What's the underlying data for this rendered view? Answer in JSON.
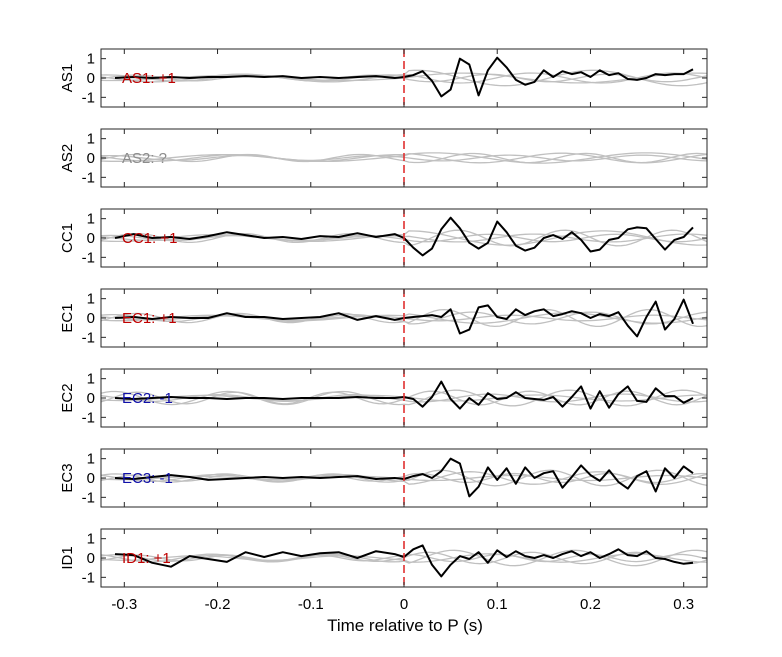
{
  "chart_data": {
    "type": "line",
    "xlabel": "Time relative to P (s)",
    "xlim": [
      -0.325,
      0.325
    ],
    "xticks": [
      -0.3,
      -0.2,
      -0.1,
      0,
      0.1,
      0.2,
      0.3
    ],
    "xtick_labels": [
      "-0.3",
      "-0.2",
      "-0.1",
      "0",
      "0.1",
      "0.2",
      "0.3"
    ],
    "ylim": [
      -1.5,
      1.5
    ],
    "yticks": [
      -1,
      0,
      1
    ],
    "ytick_labels": [
      "-1",
      "0",
      "1"
    ],
    "pick_marker": {
      "x": 0,
      "color": "#e03030"
    },
    "panels": [
      {
        "ylabel": "AS1",
        "annotation": "AS1: +1",
        "annotation_color": "#c00000",
        "x": [
          -0.31,
          -0.29,
          -0.27,
          -0.25,
          -0.23,
          -0.21,
          -0.19,
          -0.17,
          -0.15,
          -0.13,
          -0.11,
          -0.09,
          -0.07,
          -0.05,
          -0.03,
          -0.01,
          0.0,
          0.01,
          0.02,
          0.03,
          0.04,
          0.05,
          0.06,
          0.07,
          0.08,
          0.09,
          0.1,
          0.11,
          0.12,
          0.13,
          0.14,
          0.15,
          0.16,
          0.17,
          0.18,
          0.19,
          0.2,
          0.21,
          0.22,
          0.23,
          0.24,
          0.25,
          0.26,
          0.27,
          0.28,
          0.29,
          0.3,
          0.31
        ],
        "y": [
          0.0,
          0.05,
          0.0,
          0.05,
          0.0,
          0.05,
          0.05,
          0.1,
          0.05,
          0.1,
          0.0,
          0.05,
          0.0,
          0.05,
          0.1,
          0.0,
          0.05,
          0.15,
          0.35,
          -0.15,
          -0.95,
          -0.6,
          1.0,
          0.7,
          -0.9,
          0.4,
          1.05,
          0.55,
          -0.1,
          -0.35,
          -0.2,
          0.4,
          0.05,
          0.35,
          0.2,
          0.3,
          0.05,
          0.4,
          0.15,
          0.25,
          -0.05,
          -0.1,
          0.0,
          0.2,
          0.15,
          0.2,
          0.2,
          0.45
        ]
      },
      {
        "ylabel": "AS2",
        "annotation": "AS2: ?",
        "annotation_color": "#8c8c8c",
        "x": [],
        "y": []
      },
      {
        "ylabel": "CC1",
        "annotation": "CC1: +1",
        "annotation_color": "#c00000",
        "x": [
          -0.31,
          -0.29,
          -0.27,
          -0.25,
          -0.23,
          -0.21,
          -0.19,
          -0.17,
          -0.15,
          -0.13,
          -0.11,
          -0.09,
          -0.07,
          -0.05,
          -0.03,
          -0.01,
          0.0,
          0.01,
          0.02,
          0.03,
          0.04,
          0.05,
          0.06,
          0.07,
          0.08,
          0.09,
          0.1,
          0.11,
          0.12,
          0.13,
          0.14,
          0.15,
          0.16,
          0.17,
          0.18,
          0.19,
          0.2,
          0.21,
          0.22,
          0.23,
          0.24,
          0.25,
          0.26,
          0.27,
          0.28,
          0.29,
          0.3,
          0.31
        ],
        "y": [
          0.0,
          0.2,
          0.0,
          0.05,
          -0.05,
          0.1,
          0.3,
          0.15,
          0.0,
          0.05,
          -0.05,
          0.1,
          0.05,
          0.25,
          0.05,
          0.2,
          0.0,
          -0.5,
          -0.9,
          -0.55,
          0.45,
          1.05,
          0.5,
          -0.25,
          -0.55,
          -0.25,
          0.85,
          0.3,
          -0.4,
          -0.65,
          -0.5,
          0.0,
          0.15,
          -0.05,
          0.3,
          -0.1,
          -0.7,
          -0.6,
          -0.1,
          0.0,
          0.45,
          0.55,
          0.5,
          -0.05,
          -0.6,
          -0.1,
          0.05,
          0.55
        ]
      },
      {
        "ylabel": "EC1",
        "annotation": "EC1: +1",
        "annotation_color": "#c00000",
        "x": [
          -0.31,
          -0.29,
          -0.27,
          -0.25,
          -0.23,
          -0.21,
          -0.19,
          -0.17,
          -0.15,
          -0.13,
          -0.11,
          -0.09,
          -0.07,
          -0.05,
          -0.03,
          -0.01,
          0.0,
          0.01,
          0.02,
          0.03,
          0.04,
          0.05,
          0.06,
          0.07,
          0.08,
          0.09,
          0.1,
          0.11,
          0.12,
          0.13,
          0.14,
          0.15,
          0.16,
          0.17,
          0.18,
          0.19,
          0.2,
          0.21,
          0.22,
          0.23,
          0.24,
          0.25,
          0.26,
          0.27,
          0.28,
          0.29,
          0.3,
          0.31
        ],
        "y": [
          0.0,
          0.05,
          -0.05,
          0.05,
          0.0,
          0.0,
          0.25,
          0.05,
          0.05,
          -0.05,
          0.0,
          0.05,
          0.25,
          -0.1,
          0.1,
          -0.1,
          0.0,
          0.05,
          0.1,
          0.15,
          0.05,
          0.45,
          -0.8,
          -0.6,
          0.55,
          0.65,
          0.05,
          -0.05,
          0.45,
          0.15,
          0.35,
          0.45,
          0.1,
          0.2,
          0.35,
          0.25,
          0.0,
          0.2,
          0.1,
          0.3,
          -0.4,
          -0.95,
          0.05,
          0.85,
          -0.6,
          -0.05,
          0.95,
          -0.3
        ]
      },
      {
        "ylabel": "EC2",
        "annotation": "EC2: -1",
        "annotation_color": "#1010a8",
        "x": [
          -0.31,
          -0.29,
          -0.27,
          -0.25,
          -0.23,
          -0.21,
          -0.19,
          -0.17,
          -0.15,
          -0.13,
          -0.11,
          -0.09,
          -0.07,
          -0.05,
          -0.03,
          -0.01,
          0.0,
          0.01,
          0.02,
          0.03,
          0.04,
          0.05,
          0.06,
          0.07,
          0.08,
          0.09,
          0.1,
          0.11,
          0.12,
          0.13,
          0.14,
          0.15,
          0.16,
          0.17,
          0.18,
          0.19,
          0.2,
          0.21,
          0.22,
          0.23,
          0.24,
          0.25,
          0.26,
          0.27,
          0.28,
          0.29,
          0.3,
          0.31
        ],
        "y": [
          0.0,
          -0.05,
          0.0,
          0.05,
          0.0,
          0.0,
          -0.05,
          0.0,
          0.0,
          -0.05,
          0.0,
          0.0,
          0.0,
          0.05,
          0.0,
          0.0,
          0.05,
          -0.05,
          -0.45,
          0.05,
          0.85,
          -0.05,
          -0.55,
          0.0,
          -0.35,
          0.25,
          -0.05,
          0.0,
          0.3,
          0.0,
          -0.05,
          -0.1,
          0.05,
          -0.45,
          0.05,
          0.6,
          -0.55,
          0.35,
          -0.5,
          0.2,
          0.6,
          -0.15,
          -0.2,
          0.5,
          0.1,
          0.1,
          -0.25,
          0.0
        ]
      },
      {
        "ylabel": "EC3",
        "annotation": "EC3: -1",
        "annotation_color": "#1010a8",
        "x": [
          -0.31,
          -0.29,
          -0.27,
          -0.25,
          -0.23,
          -0.21,
          -0.19,
          -0.17,
          -0.15,
          -0.13,
          -0.11,
          -0.09,
          -0.07,
          -0.05,
          -0.03,
          -0.01,
          0.0,
          0.01,
          0.02,
          0.03,
          0.04,
          0.05,
          0.06,
          0.07,
          0.08,
          0.09,
          0.1,
          0.11,
          0.12,
          0.13,
          0.14,
          0.15,
          0.16,
          0.17,
          0.18,
          0.19,
          0.2,
          0.21,
          0.22,
          0.23,
          0.24,
          0.25,
          0.26,
          0.27,
          0.28,
          0.29,
          0.3,
          0.31
        ],
        "y": [
          0.0,
          -0.05,
          0.05,
          0.15,
          0.05,
          -0.1,
          -0.05,
          0.0,
          0.05,
          0.0,
          0.05,
          0.0,
          0.05,
          0.1,
          -0.05,
          0.0,
          -0.05,
          0.1,
          0.2,
          0.0,
          0.35,
          1.0,
          0.75,
          -0.95,
          -0.45,
          0.55,
          -0.1,
          0.5,
          -0.3,
          0.55,
          0.0,
          0.25,
          0.35,
          -0.5,
          0.05,
          0.65,
          0.15,
          -0.15,
          0.4,
          -0.2,
          -0.55,
          0.1,
          0.35,
          -0.7,
          0.5,
          0.0,
          0.6,
          0.25
        ]
      },
      {
        "ylabel": "ID1",
        "annotation": "ID1: +1",
        "annotation_color": "#c00000",
        "x": [
          -0.31,
          -0.29,
          -0.27,
          -0.25,
          -0.23,
          -0.21,
          -0.19,
          -0.17,
          -0.15,
          -0.13,
          -0.11,
          -0.09,
          -0.07,
          -0.05,
          -0.03,
          -0.01,
          0.0,
          0.01,
          0.02,
          0.03,
          0.04,
          0.05,
          0.06,
          0.07,
          0.08,
          0.09,
          0.1,
          0.11,
          0.12,
          0.13,
          0.14,
          0.15,
          0.16,
          0.17,
          0.18,
          0.19,
          0.2,
          0.21,
          0.22,
          0.23,
          0.24,
          0.25,
          0.26,
          0.27,
          0.28,
          0.29,
          0.3,
          0.31
        ],
        "y": [
          0.2,
          0.15,
          -0.25,
          -0.45,
          0.1,
          -0.05,
          -0.2,
          0.3,
          0.05,
          0.3,
          0.1,
          0.25,
          0.3,
          0.0,
          0.35,
          0.2,
          0.05,
          0.45,
          0.65,
          -0.35,
          -0.95,
          -0.35,
          0.1,
          -0.05,
          0.3,
          -0.25,
          0.4,
          0.05,
          0.35,
          0.1,
          0.0,
          0.15,
          0.0,
          0.2,
          0.35,
          0.1,
          0.3,
          0.0,
          0.2,
          0.45,
          0.15,
          0.1,
          0.35,
          0.0,
          -0.05,
          -0.2,
          -0.3,
          -0.25
        ]
      }
    ]
  }
}
